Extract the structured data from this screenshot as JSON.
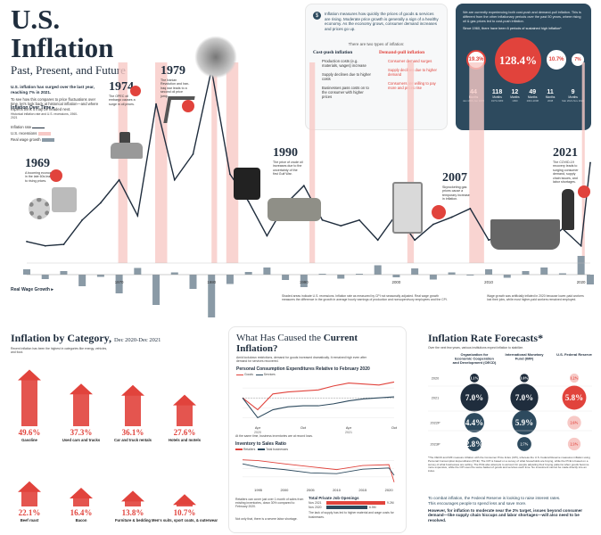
{
  "header": {
    "title": "U.S. Inflation",
    "subtitle": "Past, Present, and Future",
    "intro_bold": "U.S. inflation has surged over the last year, reaching 7% in 2021.",
    "intro_text": "To see how this compares to price fluctuations over time, let’s look back at historical inflation—and where experts think it may be headed next."
  },
  "info": {
    "text": "Inflation measures how quickly the prices of goods & services are rising. Moderate price growth is generally a sign of a healthy economy. As the economy grows, consumer demand increases and prices go up.",
    "types_title": "There are two types of inflation:",
    "cost_push": {
      "title": "Cost-push inflation",
      "items": [
        "Production costs (e.g. materials, wages) increase",
        "Supply declines due to higher costs",
        "Businesses pass costs on to the consumer with higher prices"
      ]
    },
    "demand_pull": {
      "title": "Demand-pull inflation",
      "items": [
        "Consumer demand surges",
        "Supply declines due to higher demand",
        "Consumers are willing to pay more and prices rise"
      ]
    }
  },
  "dark_panel": {
    "text": "We are currently experiencing both cost-push and demand-pull inflation. This is different from the other inflationary periods over the past 50 years, where rising oil & gas prices led to cost-push inflation.",
    "since": "Since 1960, there have been 6 periods of sustained high inflation*",
    "circles": [
      {
        "label": "Consumer Price Index",
        "value": "19.3%"
      },
      {
        "label": "",
        "value": "128.4%"
      },
      {
        "label": "",
        "value": "10.7%"
      },
      {
        "label": "",
        "value": "7%"
      }
    ],
    "stats": [
      {
        "value": "44",
        "label": "Months"
      },
      {
        "value": "118",
        "label": "Months"
      },
      {
        "value": "12",
        "label": "Months"
      },
      {
        "value": "49",
        "label": "Months"
      },
      {
        "value": "11",
        "label": "Months"
      },
      {
        "value": "9",
        "label": "Months"
      }
    ],
    "ranges": [
      "Jan 1966-Jan 1970",
      "1973-1983",
      "1990",
      "2004-2008",
      "2008",
      "Mar 2021-Nov 2021"
    ]
  },
  "timeline": {
    "legend_title": "Inflation Over Time",
    "legend_note": "Historical inflation rate and U.S. recessions, 1960-2021",
    "legend_items": [
      "Inflation rate",
      "U.S. recessions",
      "Real wage growth"
    ],
    "events": [
      {
        "year": "1969",
        "desc": "A booming economy in the late 60s leads to rising prices."
      },
      {
        "year": "1974",
        "desc": "The OPEC oil embargo causes a surge in oil prices."
      },
      {
        "year": "1979",
        "desc": "The Iranian Revolution and Iran-Iraq war leads to a second oil price jump."
      },
      {
        "year": "1990",
        "desc": "The price of crude oil increases due to the uncertainty of the first Gulf War."
      },
      {
        "year": "2007",
        "desc": "Skyrocketing gas prices cause a temporary increase in inflation."
      },
      {
        "year": "2021",
        "desc": "The COVID-19 recovery leads to surging consumer demand, supply chain issues, and labor shortages."
      }
    ],
    "axis_labels": [
      "1970",
      "1980",
      "1990",
      "2000",
      "2010",
      "2020"
    ],
    "wage_label": "Real Wage Growth",
    "recession_note": "Shaded areas indicate U.S. recessions. Inflation rate as measured by CPI not seasonally adjusted. Real wage growth measures the difference in the growth in average hourly earnings of production and nonsupervisory employees and the CPI.",
    "wage_note": "Wage growth was artificially inflated in 2020 because lower-paid workers lost their jobs, while most higher-paid workers remained employed."
  },
  "chart_data": [
    {
      "type": "line",
      "title": "Inflation Over Time",
      "x": [
        1960,
        1962,
        1964,
        1966,
        1968,
        1970,
        1972,
        1974,
        1976,
        1978,
        1980,
        1982,
        1984,
        1986,
        1988,
        1990,
        1992,
        1994,
        1996,
        1998,
        2000,
        2002,
        2004,
        2006,
        2008,
        2010,
        2012,
        2014,
        2016,
        2018,
        2020,
        2021
      ],
      "series": [
        {
          "name": "Inflation rate",
          "values": [
            1.5,
            1.2,
            1.3,
            3.0,
            4.2,
            5.8,
            3.3,
            11.1,
            5.8,
            7.6,
            13.5,
            6.2,
            4.3,
            1.9,
            4.1,
            5.4,
            3.0,
            2.6,
            3.0,
            1.6,
            3.4,
            1.6,
            2.7,
            3.2,
            3.8,
            1.6,
            2.1,
            1.6,
            1.3,
            2.4,
            1.2,
            7.0
          ]
        }
      ]
    },
    {
      "type": "bar",
      "title": "Inflation by Category, Dec 2020-Dec 2021",
      "categories": [
        "Gasoline",
        "Used cars and trucks",
        "Car and truck rentals",
        "Hotels and motels",
        "Beef roast",
        "Bacon",
        "Furniture & bedding",
        "Men's suits, sport coats, & outerwear"
      ],
      "values": [
        49.6,
        37.3,
        36.1,
        27.6,
        22.1,
        16.4,
        13.8,
        10.7
      ]
    },
    {
      "type": "line",
      "title": "Personal Consumption Expenditures Relative to February 2020",
      "x": [
        "Feb",
        "Apr",
        "Jun",
        "Aug",
        "Oct",
        "Dec",
        "Feb",
        "Apr",
        "Jun",
        "Aug",
        "Oct"
      ],
      "series": [
        {
          "name": "Goods",
          "values": [
            100,
            88,
            104,
            106,
            107,
            108,
            112,
            115,
            114,
            113,
            116
          ]
        },
        {
          "name": "Services",
          "values": [
            100,
            80,
            88,
            91,
            92,
            92,
            94,
            97,
            99,
            100,
            101
          ]
        }
      ]
    },
    {
      "type": "line",
      "title": "Inventory to Sales Ratio",
      "x": [
        1992,
        1995,
        2000,
        2005,
        2010,
        2015,
        2020,
        2021
      ],
      "series": [
        {
          "name": "Retailers",
          "values": [
            1.62,
            1.6,
            1.52,
            1.45,
            1.38,
            1.48,
            1.5,
            1.07
          ]
        },
        {
          "name": "Total businesses",
          "values": [
            1.52,
            1.44,
            1.38,
            1.3,
            1.28,
            1.39,
            1.42,
            1.24
          ]
        }
      ]
    },
    {
      "type": "table",
      "title": "Inflation Rate Forecasts*",
      "columns": [
        "",
        "Organization for Economic Cooperation and Development (OECD)",
        "International Monetary Fund (IMF)",
        "U.S. Federal Reserve"
      ],
      "rows": [
        [
          "2020",
          "1.1%",
          "1.0%",
          "1.2%"
        ],
        [
          "2021",
          "7.0%",
          "7.0%",
          "5.8%"
        ],
        [
          "2022P",
          "4.4%",
          "5.9%",
          "2.6%"
        ],
        [
          "2023P",
          "2.8%",
          "2.7%",
          "2.3%"
        ]
      ]
    }
  ],
  "current": {
    "title_a": "What Has Caused the ",
    "title_b": "Current Inflation?",
    "intro": "Amid lockdown restrictions, demand for goods increased dramatically. It remained high even after demand for services recovered.",
    "pce_title": "Personal Consumption Expenditures Relative to February 2020",
    "legend_goods": "Goods",
    "legend_services": "Services",
    "pce_x": [
      "Apr",
      "Oct",
      "Apr",
      "Oct"
    ],
    "pce_years": [
      "2020",
      "2021"
    ],
    "pce_note": "At the same time, business inventories are at record lows.",
    "inv_title": "Inventory to Sales Ratio",
    "legend_ret": "Retailers",
    "legend_tot": "Total businesses",
    "inv_x": [
      "1995",
      "2000",
      "2005",
      "2010",
      "2015",
      "2020"
    ],
    "inv_note": "Retailers can cover just over 1 month of sales from existing inventories, down 30% compared to February 2020.",
    "jobs_title": "Total Private Job Openings",
    "jobs_rows": [
      {
        "label": "Nov 2021",
        "value": "9.2M"
      },
      {
        "label": "Nov 2020",
        "value": "6.5M"
      }
    ],
    "jobs_note": "The lack of supply has led to higher material and wage costs for businesses.",
    "labor_note": "Not only that, there is a severe labor shortage."
  },
  "categories": {
    "title": "Inflation by Category,",
    "period": "Dec 2020-Dec 2021",
    "note": "Recent inflation has been the highest in categories like energy, vehicles, and food."
  },
  "forecast": {
    "title": "Inflation Rate Forecasts*",
    "note": "Over the next few years, various institutions expect inflation to stabilize.",
    "footnote": "*The OECD and IMF measure inflation with the Consumer Price Index (CPI), whereas the U.S. Federal Reserve measures inflation using Personal Consumption Expenditures (PCE). The CPI is based on a survey of what households are buying, while the PCE is based on a survey of what businesses are selling. The PCE also attempts to account for people adjusting their buying patterns when goods become more expensive, while the CPI uses the same basket of goods and services each time. No investment cannot be made directly into an index.",
    "closing_a": "To combat inflation, the Federal Reserve is looking to raise interest rates.",
    "closing_b": "This encourages people to spend less and save more.",
    "closing_bold": "However, for inflation to moderate near the 2% target, issues beyond consumer demand—like supply chain hiccups and labor shortages—will also need to be resolved."
  },
  "colors": {
    "navy": "#1f2d3d",
    "red": "#e1433c",
    "pink": "#f7c9c6",
    "teal": "#2d4a5e",
    "bar": "#8a9aa6"
  }
}
